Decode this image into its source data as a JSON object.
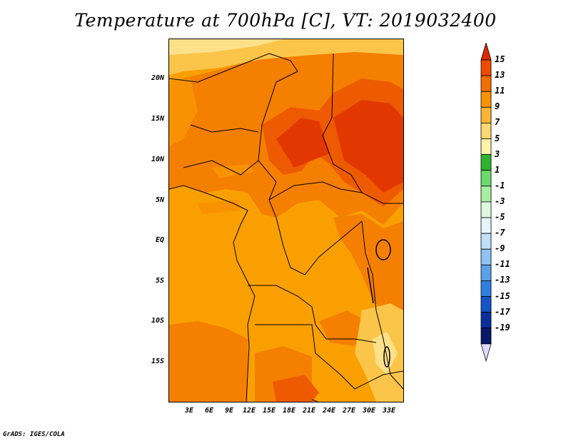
{
  "title": "Temperature at 700hPa [C], VT: 2019032400",
  "footer": "GrADS: IGES/COLA",
  "y_ticks": [
    "20N",
    "15N",
    "10N",
    "5N",
    "EQ",
    "5S",
    "10S",
    "15S"
  ],
  "x_ticks": [
    "3E",
    "6E",
    "9E",
    "12E",
    "15E",
    "18E",
    "21E",
    "24E",
    "27E",
    "30E",
    "33E"
  ],
  "colorbar": {
    "labels": [
      "15",
      "13",
      "11",
      "9",
      "7",
      "5",
      "3",
      "1",
      "-1",
      "-3",
      "-5",
      "-7",
      "-9",
      "-11",
      "-13",
      "-15",
      "-17",
      "-19"
    ],
    "colors": [
      "#dd2a00",
      "#ee4b00",
      "#f56e00",
      "#f99200",
      "#fbb534",
      "#fdd772",
      "#fdf4aa",
      "#2fb22f",
      "#6bd96b",
      "#a8eea0",
      "#e0f8e0",
      "#e6f4ff",
      "#bfe0fb",
      "#8ec3f3",
      "#5aa0ea",
      "#2f7fe0",
      "#1553c8",
      "#0a2f9c",
      "#06186a",
      "#e0dcff"
    ]
  },
  "colors": {
    "t8": "#f9a000",
    "t10": "#f57f00",
    "t12": "#ee5a00",
    "t14": "#e23800",
    "t6": "#fbc54a",
    "t4": "#fde18a",
    "t2": "#fff5c0"
  }
}
